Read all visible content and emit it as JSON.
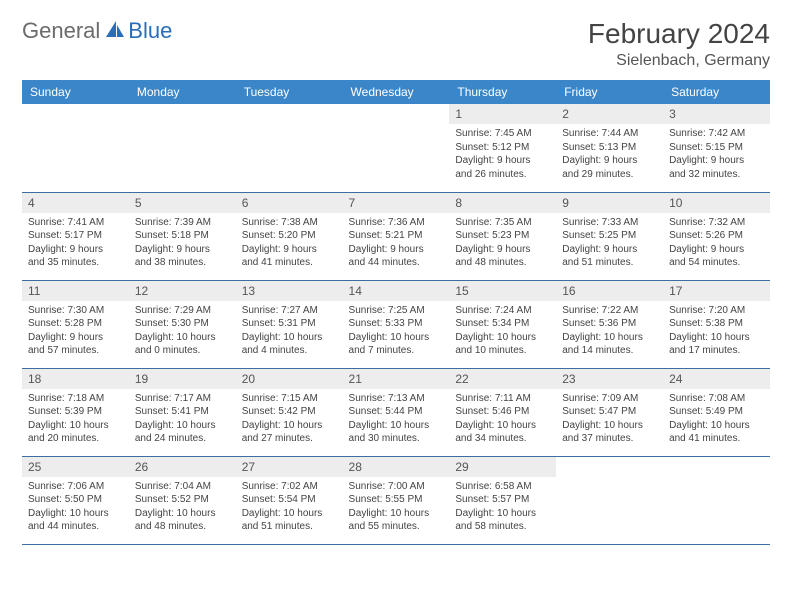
{
  "logo": {
    "text1": "General",
    "text2": "Blue"
  },
  "title": "February 2024",
  "location": "Sielenbach, Germany",
  "colors": {
    "header_bg": "#3b86c8",
    "header_text": "#ffffff",
    "daynum_bg": "#ededed",
    "row_border": "#3b6fa3",
    "logo_gray": "#6b6b6b",
    "logo_blue": "#2a6db8"
  },
  "weekdays": [
    "Sunday",
    "Monday",
    "Tuesday",
    "Wednesday",
    "Thursday",
    "Friday",
    "Saturday"
  ],
  "weeks": [
    [
      null,
      null,
      null,
      null,
      {
        "n": "1",
        "sr": "Sunrise: 7:45 AM",
        "ss": "Sunset: 5:12 PM",
        "d1": "Daylight: 9 hours",
        "d2": "and 26 minutes."
      },
      {
        "n": "2",
        "sr": "Sunrise: 7:44 AM",
        "ss": "Sunset: 5:13 PM",
        "d1": "Daylight: 9 hours",
        "d2": "and 29 minutes."
      },
      {
        "n": "3",
        "sr": "Sunrise: 7:42 AM",
        "ss": "Sunset: 5:15 PM",
        "d1": "Daylight: 9 hours",
        "d2": "and 32 minutes."
      }
    ],
    [
      {
        "n": "4",
        "sr": "Sunrise: 7:41 AM",
        "ss": "Sunset: 5:17 PM",
        "d1": "Daylight: 9 hours",
        "d2": "and 35 minutes."
      },
      {
        "n": "5",
        "sr": "Sunrise: 7:39 AM",
        "ss": "Sunset: 5:18 PM",
        "d1": "Daylight: 9 hours",
        "d2": "and 38 minutes."
      },
      {
        "n": "6",
        "sr": "Sunrise: 7:38 AM",
        "ss": "Sunset: 5:20 PM",
        "d1": "Daylight: 9 hours",
        "d2": "and 41 minutes."
      },
      {
        "n": "7",
        "sr": "Sunrise: 7:36 AM",
        "ss": "Sunset: 5:21 PM",
        "d1": "Daylight: 9 hours",
        "d2": "and 44 minutes."
      },
      {
        "n": "8",
        "sr": "Sunrise: 7:35 AM",
        "ss": "Sunset: 5:23 PM",
        "d1": "Daylight: 9 hours",
        "d2": "and 48 minutes."
      },
      {
        "n": "9",
        "sr": "Sunrise: 7:33 AM",
        "ss": "Sunset: 5:25 PM",
        "d1": "Daylight: 9 hours",
        "d2": "and 51 minutes."
      },
      {
        "n": "10",
        "sr": "Sunrise: 7:32 AM",
        "ss": "Sunset: 5:26 PM",
        "d1": "Daylight: 9 hours",
        "d2": "and 54 minutes."
      }
    ],
    [
      {
        "n": "11",
        "sr": "Sunrise: 7:30 AM",
        "ss": "Sunset: 5:28 PM",
        "d1": "Daylight: 9 hours",
        "d2": "and 57 minutes."
      },
      {
        "n": "12",
        "sr": "Sunrise: 7:29 AM",
        "ss": "Sunset: 5:30 PM",
        "d1": "Daylight: 10 hours",
        "d2": "and 0 minutes."
      },
      {
        "n": "13",
        "sr": "Sunrise: 7:27 AM",
        "ss": "Sunset: 5:31 PM",
        "d1": "Daylight: 10 hours",
        "d2": "and 4 minutes."
      },
      {
        "n": "14",
        "sr": "Sunrise: 7:25 AM",
        "ss": "Sunset: 5:33 PM",
        "d1": "Daylight: 10 hours",
        "d2": "and 7 minutes."
      },
      {
        "n": "15",
        "sr": "Sunrise: 7:24 AM",
        "ss": "Sunset: 5:34 PM",
        "d1": "Daylight: 10 hours",
        "d2": "and 10 minutes."
      },
      {
        "n": "16",
        "sr": "Sunrise: 7:22 AM",
        "ss": "Sunset: 5:36 PM",
        "d1": "Daylight: 10 hours",
        "d2": "and 14 minutes."
      },
      {
        "n": "17",
        "sr": "Sunrise: 7:20 AM",
        "ss": "Sunset: 5:38 PM",
        "d1": "Daylight: 10 hours",
        "d2": "and 17 minutes."
      }
    ],
    [
      {
        "n": "18",
        "sr": "Sunrise: 7:18 AM",
        "ss": "Sunset: 5:39 PM",
        "d1": "Daylight: 10 hours",
        "d2": "and 20 minutes."
      },
      {
        "n": "19",
        "sr": "Sunrise: 7:17 AM",
        "ss": "Sunset: 5:41 PM",
        "d1": "Daylight: 10 hours",
        "d2": "and 24 minutes."
      },
      {
        "n": "20",
        "sr": "Sunrise: 7:15 AM",
        "ss": "Sunset: 5:42 PM",
        "d1": "Daylight: 10 hours",
        "d2": "and 27 minutes."
      },
      {
        "n": "21",
        "sr": "Sunrise: 7:13 AM",
        "ss": "Sunset: 5:44 PM",
        "d1": "Daylight: 10 hours",
        "d2": "and 30 minutes."
      },
      {
        "n": "22",
        "sr": "Sunrise: 7:11 AM",
        "ss": "Sunset: 5:46 PM",
        "d1": "Daylight: 10 hours",
        "d2": "and 34 minutes."
      },
      {
        "n": "23",
        "sr": "Sunrise: 7:09 AM",
        "ss": "Sunset: 5:47 PM",
        "d1": "Daylight: 10 hours",
        "d2": "and 37 minutes."
      },
      {
        "n": "24",
        "sr": "Sunrise: 7:08 AM",
        "ss": "Sunset: 5:49 PM",
        "d1": "Daylight: 10 hours",
        "d2": "and 41 minutes."
      }
    ],
    [
      {
        "n": "25",
        "sr": "Sunrise: 7:06 AM",
        "ss": "Sunset: 5:50 PM",
        "d1": "Daylight: 10 hours",
        "d2": "and 44 minutes."
      },
      {
        "n": "26",
        "sr": "Sunrise: 7:04 AM",
        "ss": "Sunset: 5:52 PM",
        "d1": "Daylight: 10 hours",
        "d2": "and 48 minutes."
      },
      {
        "n": "27",
        "sr": "Sunrise: 7:02 AM",
        "ss": "Sunset: 5:54 PM",
        "d1": "Daylight: 10 hours",
        "d2": "and 51 minutes."
      },
      {
        "n": "28",
        "sr": "Sunrise: 7:00 AM",
        "ss": "Sunset: 5:55 PM",
        "d1": "Daylight: 10 hours",
        "d2": "and 55 minutes."
      },
      {
        "n": "29",
        "sr": "Sunrise: 6:58 AM",
        "ss": "Sunset: 5:57 PM",
        "d1": "Daylight: 10 hours",
        "d2": "and 58 minutes."
      },
      null,
      null
    ]
  ]
}
